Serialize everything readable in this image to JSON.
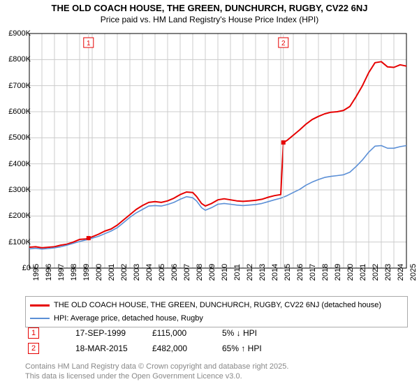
{
  "title_line1": "THE OLD COACH HOUSE, THE GREEN, DUNCHURCH, RUGBY, CV22 6NJ",
  "title_line2": "Price paid vs. HM Land Registry's House Price Index (HPI)",
  "chart": {
    "type": "line",
    "background_color": "#ffffff",
    "plot_border_color": "#000000",
    "grid_color": "#cccccc",
    "ylim": [
      0,
      900000
    ],
    "ytick_step": 100000,
    "ytick_labels": [
      "£0",
      "£100K",
      "£200K",
      "£300K",
      "£400K",
      "£500K",
      "£600K",
      "£700K",
      "£800K",
      "£900K"
    ],
    "x_years": [
      1995,
      1996,
      1997,
      1998,
      1999,
      2000,
      2001,
      2002,
      2003,
      2004,
      2005,
      2006,
      2007,
      2008,
      2009,
      2010,
      2011,
      2012,
      2013,
      2014,
      2015,
      2016,
      2017,
      2018,
      2019,
      2020,
      2021,
      2022,
      2023,
      2024,
      2025
    ],
    "axis_fontsize": 11,
    "series": [
      {
        "name": "THE OLD COACH HOUSE, THE GREEN, DUNCHURCH, RUGBY, CV22 6NJ (detached house)",
        "color": "#e60000",
        "line_width": 2.0,
        "data": [
          [
            1995.0,
            80000
          ],
          [
            1995.5,
            82000
          ],
          [
            1996.0,
            78000
          ],
          [
            1996.5,
            80000
          ],
          [
            1997.0,
            82000
          ],
          [
            1997.5,
            88000
          ],
          [
            1998.0,
            92000
          ],
          [
            1998.5,
            100000
          ],
          [
            1999.0,
            110000
          ],
          [
            1999.5,
            112000
          ],
          [
            1999.71,
            115000
          ],
          [
            2000.0,
            120000
          ],
          [
            2000.5,
            130000
          ],
          [
            2001.0,
            142000
          ],
          [
            2001.5,
            150000
          ],
          [
            2002.0,
            165000
          ],
          [
            2002.5,
            185000
          ],
          [
            2003.0,
            205000
          ],
          [
            2003.5,
            225000
          ],
          [
            2004.0,
            240000
          ],
          [
            2004.5,
            252000
          ],
          [
            2005.0,
            255000
          ],
          [
            2005.5,
            252000
          ],
          [
            2006.0,
            258000
          ],
          [
            2006.5,
            268000
          ],
          [
            2007.0,
            282000
          ],
          [
            2007.5,
            292000
          ],
          [
            2008.0,
            290000
          ],
          [
            2008.3,
            275000
          ],
          [
            2008.7,
            248000
          ],
          [
            2009.0,
            238000
          ],
          [
            2009.5,
            248000
          ],
          [
            2010.0,
            262000
          ],
          [
            2010.5,
            266000
          ],
          [
            2011.0,
            262000
          ],
          [
            2011.5,
            258000
          ],
          [
            2012.0,
            256000
          ],
          [
            2012.5,
            258000
          ],
          [
            2013.0,
            260000
          ],
          [
            2013.5,
            264000
          ],
          [
            2014.0,
            272000
          ],
          [
            2014.5,
            278000
          ],
          [
            2015.0,
            282000
          ],
          [
            2015.21,
            482000
          ],
          [
            2015.5,
            490000
          ],
          [
            2016.0,
            510000
          ],
          [
            2016.5,
            530000
          ],
          [
            2017.0,
            552000
          ],
          [
            2017.5,
            570000
          ],
          [
            2018.0,
            582000
          ],
          [
            2018.5,
            592000
          ],
          [
            2019.0,
            598000
          ],
          [
            2019.5,
            600000
          ],
          [
            2020.0,
            605000
          ],
          [
            2020.5,
            620000
          ],
          [
            2021.0,
            658000
          ],
          [
            2021.5,
            700000
          ],
          [
            2022.0,
            750000
          ],
          [
            2022.5,
            788000
          ],
          [
            2023.0,
            792000
          ],
          [
            2023.5,
            772000
          ],
          [
            2024.0,
            770000
          ],
          [
            2024.5,
            780000
          ],
          [
            2025.0,
            775000
          ]
        ]
      },
      {
        "name": "HPI: Average price, detached house, Rugby",
        "color": "#5b8fd6",
        "line_width": 1.6,
        "data": [
          [
            1995.0,
            74000
          ],
          [
            1995.5,
            76000
          ],
          [
            1996.0,
            73000
          ],
          [
            1996.5,
            75000
          ],
          [
            1997.0,
            78000
          ],
          [
            1997.5,
            82000
          ],
          [
            1998.0,
            88000
          ],
          [
            1998.5,
            95000
          ],
          [
            1999.0,
            102000
          ],
          [
            1999.5,
            108000
          ],
          [
            2000.0,
            115000
          ],
          [
            2000.5,
            122000
          ],
          [
            2001.0,
            132000
          ],
          [
            2001.5,
            142000
          ],
          [
            2002.0,
            155000
          ],
          [
            2002.5,
            175000
          ],
          [
            2003.0,
            195000
          ],
          [
            2003.5,
            212000
          ],
          [
            2004.0,
            225000
          ],
          [
            2004.5,
            238000
          ],
          [
            2005.0,
            240000
          ],
          [
            2005.5,
            238000
          ],
          [
            2006.0,
            244000
          ],
          [
            2006.5,
            252000
          ],
          [
            2007.0,
            264000
          ],
          [
            2007.5,
            274000
          ],
          [
            2008.0,
            270000
          ],
          [
            2008.3,
            258000
          ],
          [
            2008.7,
            232000
          ],
          [
            2009.0,
            222000
          ],
          [
            2009.5,
            232000
          ],
          [
            2010.0,
            245000
          ],
          [
            2010.5,
            248000
          ],
          [
            2011.0,
            245000
          ],
          [
            2011.5,
            242000
          ],
          [
            2012.0,
            240000
          ],
          [
            2012.5,
            242000
          ],
          [
            2013.0,
            244000
          ],
          [
            2013.5,
            248000
          ],
          [
            2014.0,
            255000
          ],
          [
            2014.5,
            262000
          ],
          [
            2015.0,
            268000
          ],
          [
            2015.5,
            278000
          ],
          [
            2016.0,
            290000
          ],
          [
            2016.5,
            302000
          ],
          [
            2017.0,
            318000
          ],
          [
            2017.5,
            330000
          ],
          [
            2018.0,
            340000
          ],
          [
            2018.5,
            348000
          ],
          [
            2019.0,
            352000
          ],
          [
            2019.5,
            355000
          ],
          [
            2020.0,
            358000
          ],
          [
            2020.5,
            368000
          ],
          [
            2021.0,
            390000
          ],
          [
            2021.5,
            415000
          ],
          [
            2022.0,
            445000
          ],
          [
            2022.5,
            468000
          ],
          [
            2023.0,
            470000
          ],
          [
            2023.5,
            460000
          ],
          [
            2024.0,
            460000
          ],
          [
            2024.5,
            466000
          ],
          [
            2025.0,
            470000
          ]
        ]
      }
    ],
    "sale_markers": [
      {
        "num": "1",
        "x": 1999.71,
        "y": 115000,
        "color": "#e60000"
      },
      {
        "num": "2",
        "x": 2015.21,
        "y": 482000,
        "color": "#e60000"
      }
    ],
    "marker_size": 6,
    "marker_label_box_border": "#e60000",
    "marker_label_top_y": 62
  },
  "legend": {
    "series": [
      {
        "color": "#e60000",
        "width": 2.5,
        "label": "THE OLD COACH HOUSE, THE GREEN, DUNCHURCH, RUGBY, CV22 6NJ (detached house)"
      },
      {
        "color": "#5b8fd6",
        "width": 2.0,
        "label": "HPI: Average price, detached house, Rugby"
      }
    ]
  },
  "sales": [
    {
      "num": "1",
      "border_color": "#e60000",
      "text_color": "#e60000",
      "date": "17-SEP-1999",
      "price": "£115,000",
      "pct": "5% ↓ HPI"
    },
    {
      "num": "2",
      "border_color": "#e60000",
      "text_color": "#e60000",
      "date": "18-MAR-2015",
      "price": "£482,000",
      "pct": "65% ↑ HPI"
    }
  ],
  "footer_line1": "Contains HM Land Registry data © Crown copyright and database right 2025.",
  "footer_line2": "This data is licensed under the Open Government Licence v3.0."
}
